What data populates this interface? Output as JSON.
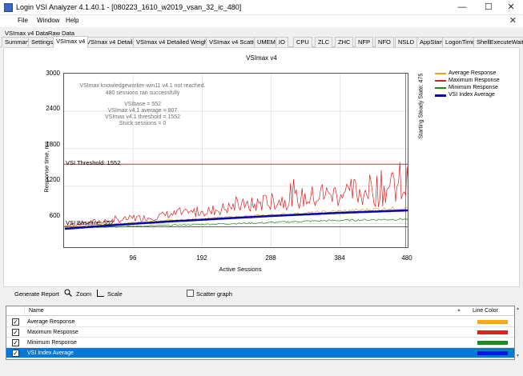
{
  "window": {
    "title": "Login VSI Analyzer 4.1.40.1 - [080223_1610_w2019_vsan_32_ic_480]",
    "minimize": "—",
    "maximize": "☐",
    "close": "✕",
    "doc_close": "✕"
  },
  "menu": [
    "File",
    "Window",
    "Help"
  ],
  "tabs_top": [
    "VSImax v4 Data",
    "Raw Data"
  ],
  "tabs": [
    "Summary",
    "Settings",
    "VSImax v4",
    "VSImax v4 Detailed",
    "VSImax v4 Detailed Weighted",
    "VSImax v4 Scatter",
    "UMEM",
    "IO",
    "CPU",
    "ZLC",
    "ZHC",
    "NFP",
    "NFO",
    "NSLD",
    "AppStart",
    "LogonTimer",
    "ShellExecuteWait"
  ],
  "active_tab": "VSImax v4",
  "chart_data": {
    "type": "line",
    "title": "VSImax v4",
    "xlabel": "Active Sessions",
    "ylabel": "Response time, ms",
    "xlim": [
      0,
      480
    ],
    "ylim": [
      200,
      3000
    ],
    "xticks": [
      "96",
      "192",
      "288",
      "384",
      "480"
    ],
    "yticks": [
      "3000",
      "2400",
      "1800",
      "1200",
      "600"
    ],
    "grid": true,
    "legend_position": "right",
    "series": [
      {
        "name": "Average Response",
        "color": "#e8a317",
        "x": [
          1,
          48,
          96,
          144,
          192,
          240,
          288,
          336,
          384,
          432,
          480
        ],
        "y": [
          555,
          585,
          615,
          650,
          680,
          710,
          740,
          770,
          800,
          830,
          860
        ]
      },
      {
        "name": "Maximum Response",
        "color": "#d92020",
        "x": [
          1,
          24,
          48,
          72,
          96,
          120,
          144,
          168,
          192,
          216,
          240,
          264,
          288,
          312,
          336,
          360,
          384,
          408,
          432,
          456,
          480
        ],
        "y": [
          580,
          610,
          640,
          650,
          690,
          700,
          750,
          760,
          800,
          830,
          880,
          900,
          960,
          990,
          1010,
          1050,
          1090,
          1110,
          1150,
          1180,
          1230
        ]
      },
      {
        "name": "Minimum Response",
        "color": "#1b8a1b",
        "x": [
          1,
          48,
          96,
          144,
          192,
          240,
          288,
          336,
          384,
          432,
          480
        ],
        "y": [
          530,
          545,
          560,
          575,
          590,
          605,
          620,
          640,
          655,
          665,
          675
        ]
      },
      {
        "name": "VSI Index Average",
        "color": "#0a0aa8",
        "x": [
          1,
          48,
          96,
          144,
          192,
          240,
          288,
          336,
          384,
          432,
          480
        ],
        "y": [
          520,
          560,
          600,
          635,
          665,
          695,
          725,
          750,
          775,
          795,
          815
        ]
      }
    ],
    "threshold": {
      "label": "VSI Threshold: 1552",
      "value": 1552,
      "color": "#b23b3b"
    },
    "baseline": {
      "label": "VSI Baseline: 552",
      "value": 552,
      "color": "#333333"
    },
    "steady_state": {
      "label": "Starting Steady State: 475",
      "value": 475
    },
    "annotations": [
      "VSImax knowledgeworker-win11 v4.1 not reached.",
      "480 sessions ran successfully",
      "VSIbase = 552",
      "VSImax v4.1 average = 807",
      "VSImax v4.1 threshold = 1552",
      "Stuck sessions = 0"
    ]
  },
  "controls": {
    "generate": "Generate Report",
    "zoom": "Zoom",
    "scale": "Scale",
    "scatter": "Scatter graph"
  },
  "series_list": {
    "col_name": "Name",
    "col_color": "Line Color",
    "rows": [
      {
        "label": "Average Response",
        "color": "#f5a623",
        "checked": "✓"
      },
      {
        "label": "Maximum Response",
        "color": "#e02020",
        "checked": "✓"
      },
      {
        "label": "Minimum Response",
        "color": "#1c8a1c",
        "checked": "✓"
      },
      {
        "label": "VSI Index Average",
        "color": "#1010e0",
        "checked": "✓"
      }
    ]
  }
}
